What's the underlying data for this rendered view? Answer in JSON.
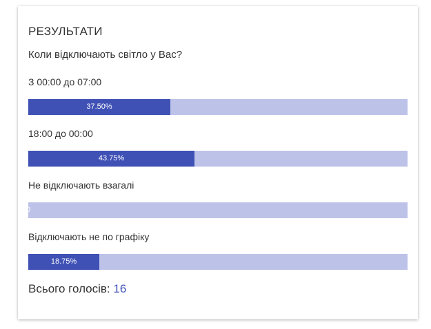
{
  "poll": {
    "title": "РЕЗУЛЬТАТИ",
    "question": "Коли відключають світло у Вас?",
    "options": [
      {
        "label": "З 00:00 до 07:00",
        "percent_text": "37.50%",
        "fraction": 0.375
      },
      {
        "label": "18:00 до 00:00",
        "percent_text": "43.75%",
        "fraction": 0.4375
      },
      {
        "label": "Не відключають взагалі",
        "percent_text": "0",
        "fraction": 0
      },
      {
        "label": "Відключають не по графіку",
        "percent_text": "18.75%",
        "fraction": 0.1875
      }
    ],
    "total_label": "Всього голосів:",
    "total_count": "16"
  },
  "colors": {
    "bar_fill": "#3f51b5",
    "bar_track": "#bdc2e8",
    "total_count": "#3f51b5"
  }
}
